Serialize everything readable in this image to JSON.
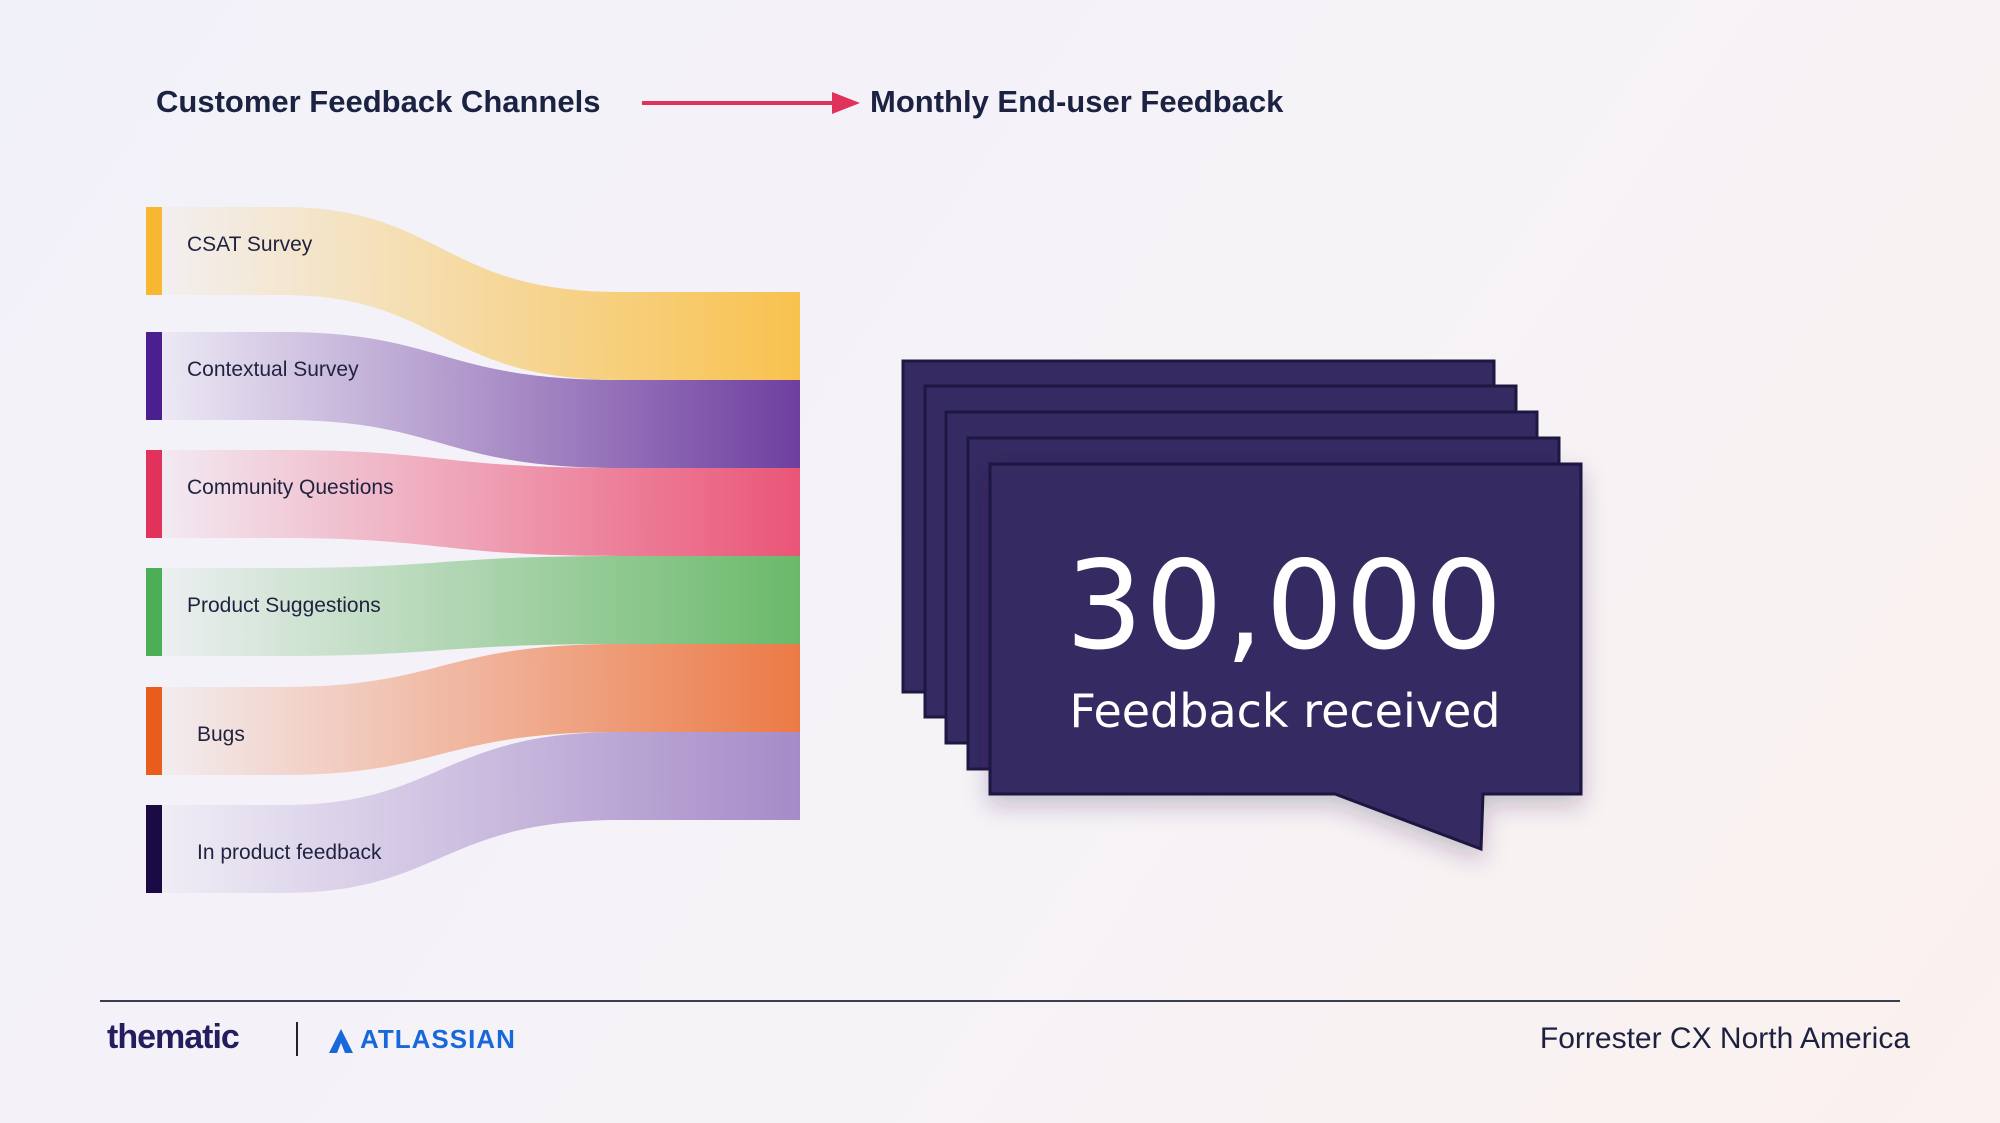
{
  "header": {
    "left_title": "Customer Feedback Channels",
    "right_title": "Monthly End-user Feedback",
    "arrow_color": "#e0325b"
  },
  "chart_data": {
    "type": "sankey",
    "source_label": "Customer Feedback Channels",
    "target_label": "Monthly End-user Feedback",
    "channels": [
      {
        "name": "CSAT Survey",
        "color": "#f7b731"
      },
      {
        "name": "Contextual Survey",
        "color": "#4b1f8f"
      },
      {
        "name": "Community Questions",
        "color": "#e0325b"
      },
      {
        "name": "Product Suggestions",
        "color": "#4cae55"
      },
      {
        "name": "Bugs",
        "color": "#e85d1c"
      },
      {
        "name": "In product feedback",
        "color": "#1a0b44"
      }
    ],
    "flow_colors": [
      "#f8c24e",
      "#6f3fa0",
      "#ea5577",
      "#6ab96a",
      "#ec7a46",
      "#a58bc8"
    ]
  },
  "summary": {
    "value": "30,000",
    "caption": "Feedback received",
    "card_color": "#352a62"
  },
  "footer": {
    "logo_left": "thematic",
    "logo_right": "ATLASSIAN",
    "event": "Forrester CX North America"
  }
}
